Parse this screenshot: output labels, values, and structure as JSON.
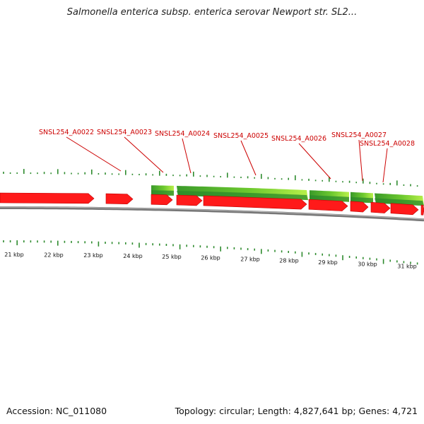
{
  "title": "Salmonella enterica subsp. enterica serovar Newport str. SL2...",
  "footer": {
    "accession": "Accession: NC_011080",
    "summary": "Topology: circular; Length: 4,827,641 bp; Genes: 4,721"
  },
  "genes": [
    {
      "label": "SNSL254_A0022"
    },
    {
      "label": "SNSL254_A0023"
    },
    {
      "label": "SNSL254_A0024"
    },
    {
      "label": "SNSL254_A0025"
    },
    {
      "label": "SNSL254_A0026"
    },
    {
      "label": "SNSL254_A0027"
    },
    {
      "label": "SNSL254_A0028"
    }
  ],
  "scale_labels": [
    "21 kbp",
    "22 kbp",
    "23 kbp",
    "24 kbp",
    "25 kbp",
    "26 kbp",
    "27 kbp",
    "28 kbp",
    "29 kbp",
    "30 kbp",
    "31 kbp"
  ],
  "colors": {
    "gene_red": "#ff1a1a",
    "gc_green": "#2e8b2e",
    "gc_light": "#b8f04a",
    "backbone": "#777777",
    "label_red": "#cc0000"
  }
}
